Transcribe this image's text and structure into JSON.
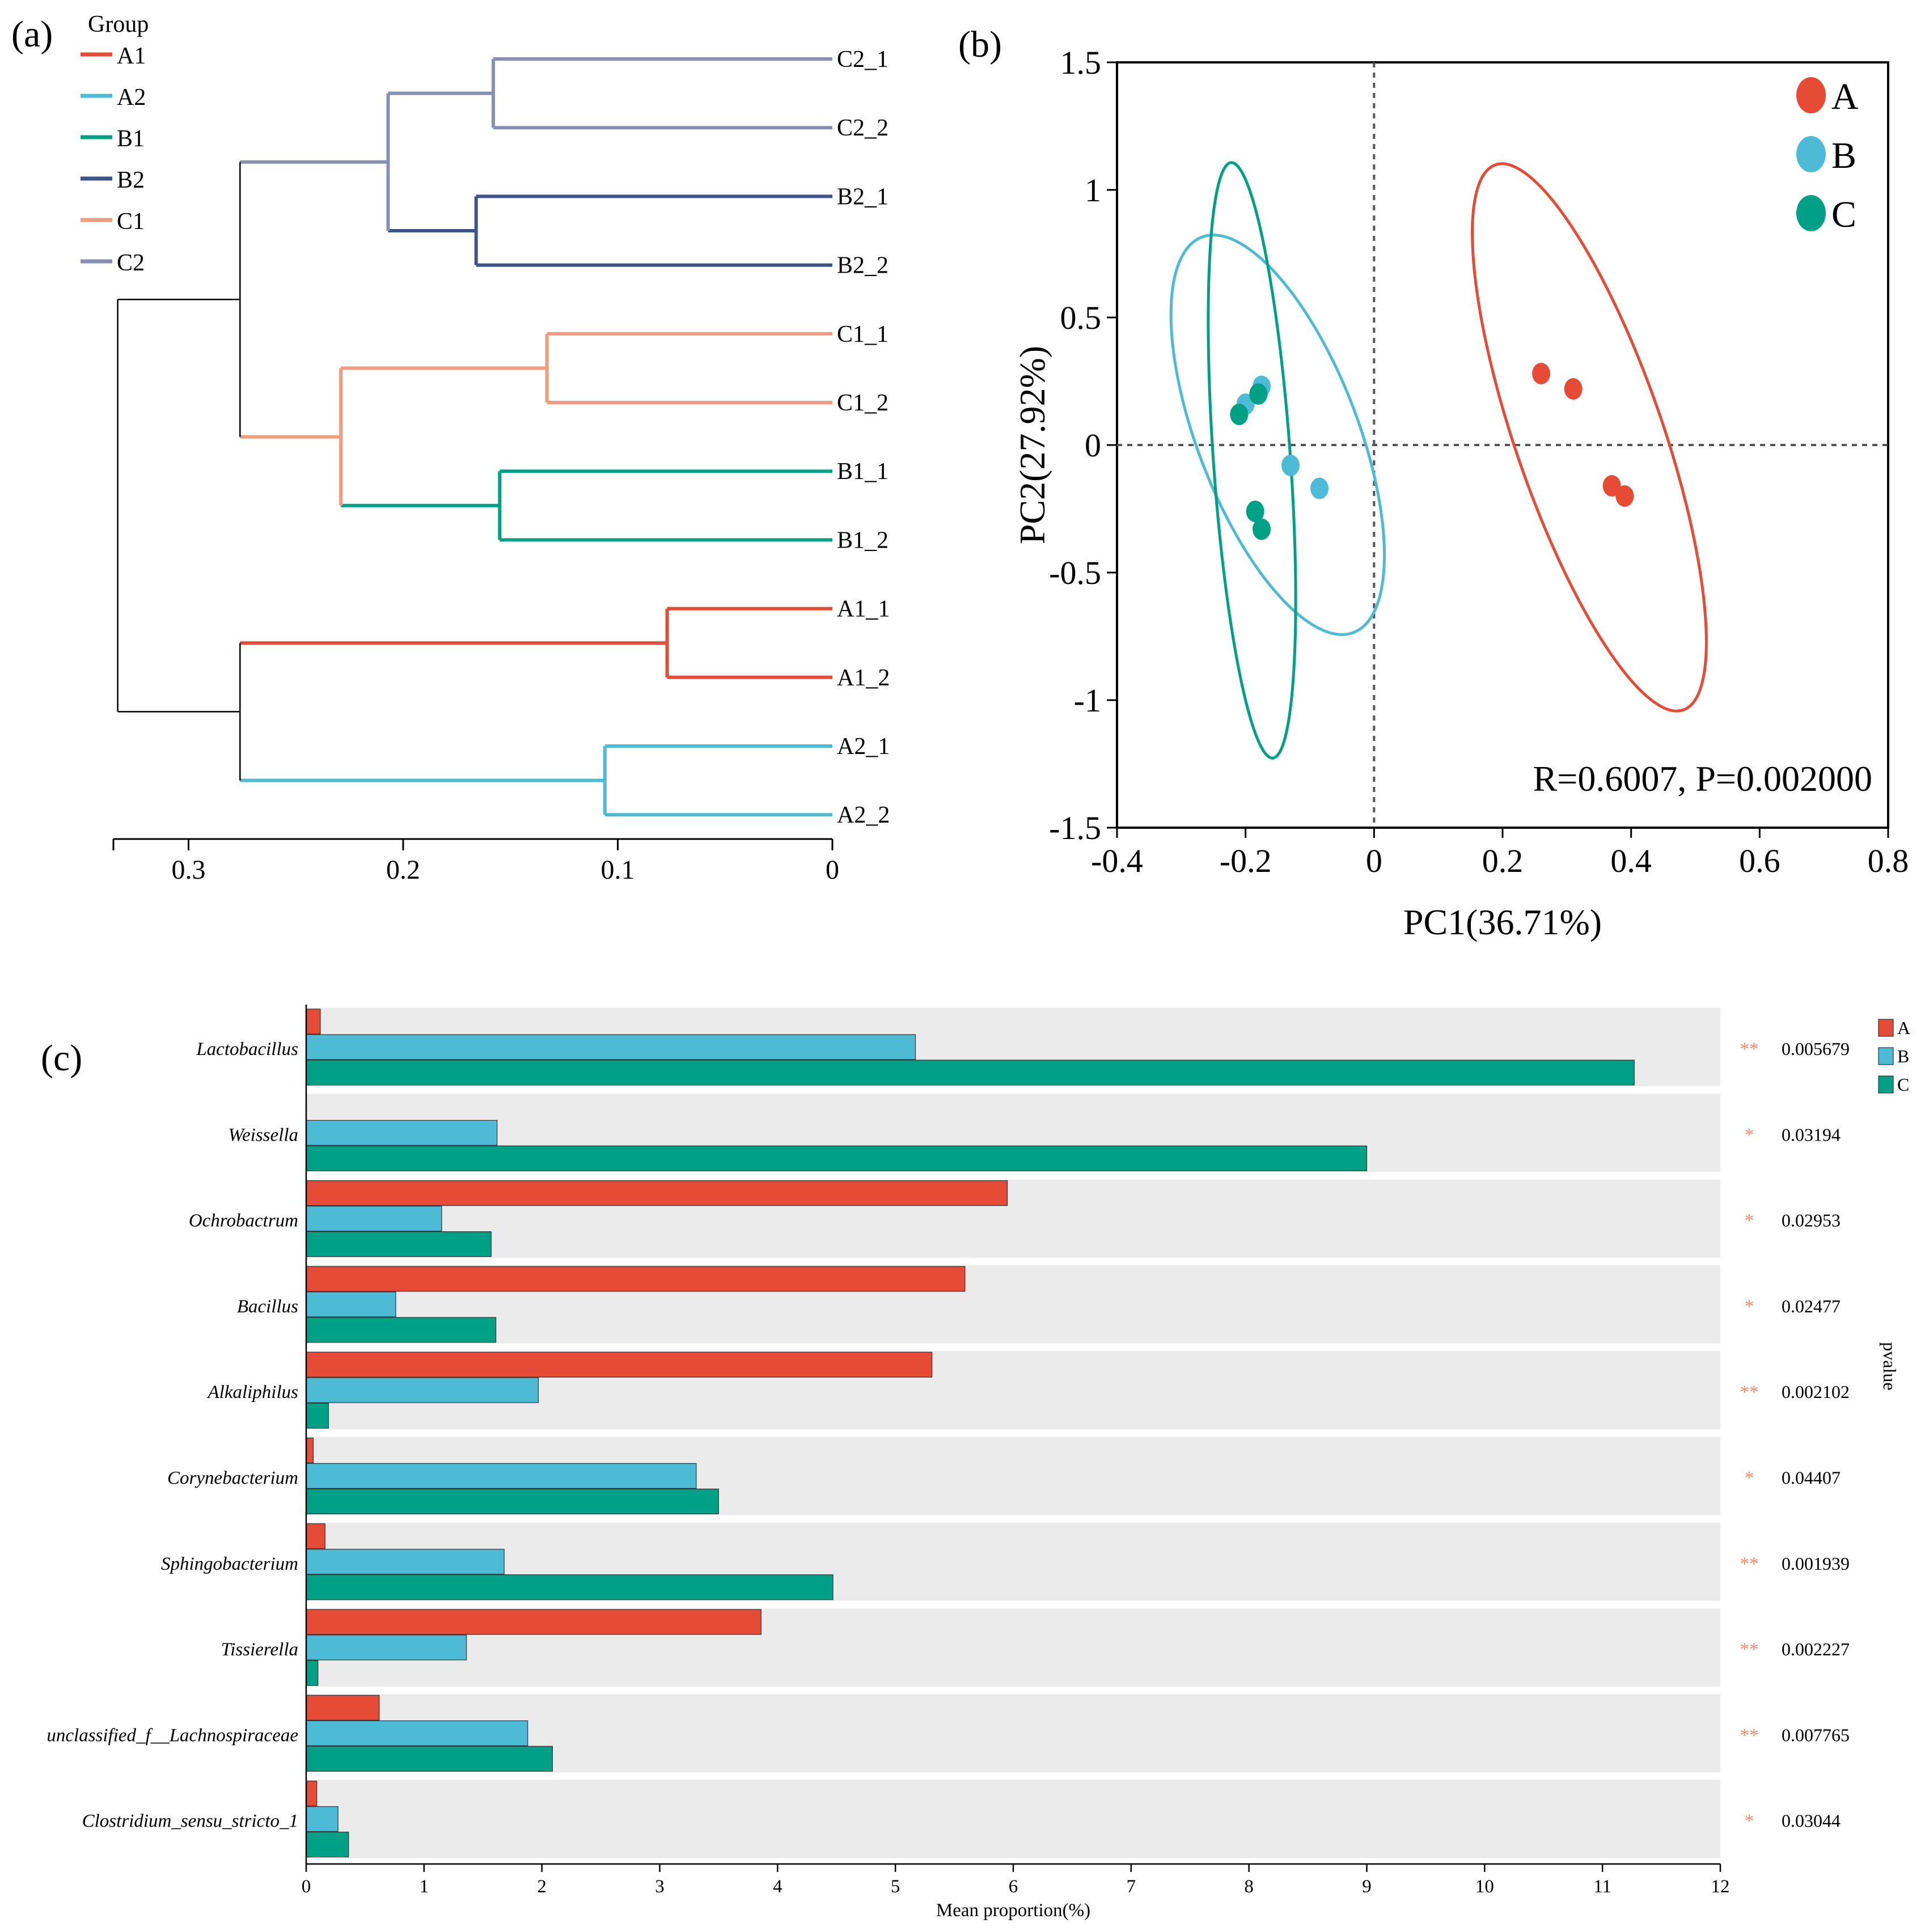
{
  "panel_labels": [
    "(a)",
    "(b)",
    "(c)"
  ],
  "colors": {
    "A1": "#e64b35",
    "A2": "#4dbbd5",
    "B1": "#00a087",
    "B2": "#3c5488",
    "C1": "#f39b7f",
    "C2": "#8491b4",
    "A": "#e64b35",
    "B": "#4dbbd5",
    "C": "#00a087",
    "panel_bg": "#ebebeb",
    "star": "#f08a6a",
    "black_branch": "#000000"
  },
  "chart_data": [
    {
      "type": "dendrogram",
      "legend_title": "Group",
      "legend": [
        "A1",
        "A2",
        "B1",
        "B2",
        "C1",
        "C2"
      ],
      "leaves": [
        "C2_1",
        "C2_2",
        "B2_1",
        "B2_2",
        "C1_1",
        "C1_2",
        "B1_1",
        "B1_2",
        "A1_1",
        "A1_2",
        "A2_1",
        "A2_2"
      ],
      "leaf_groups": [
        "C2",
        "C2",
        "B2",
        "B2",
        "C1",
        "C1",
        "B1",
        "B1",
        "A1",
        "A1",
        "A2",
        "A2"
      ],
      "merges": [
        {
          "id": "m1",
          "left": "C2_1",
          "right": "C2_2",
          "height": 0.158,
          "group": "C2"
        },
        {
          "id": "m2",
          "left": "B2_1",
          "right": "B2_2",
          "height": 0.166,
          "group": "B2"
        },
        {
          "id": "m3",
          "left": "C1_1",
          "right": "C1_2",
          "height": 0.133,
          "group": "C1"
        },
        {
          "id": "m4",
          "left": "B1_1",
          "right": "B1_2",
          "height": 0.155,
          "group": "B1"
        },
        {
          "id": "m5",
          "left": "A1_1",
          "right": "A1_2",
          "height": 0.077,
          "group": "A1"
        },
        {
          "id": "m6",
          "left": "A2_1",
          "right": "A2_2",
          "height": 0.106,
          "group": "A2"
        },
        {
          "id": "m7",
          "left": "m1",
          "right": "m2",
          "height": 0.207,
          "group": "C2"
        },
        {
          "id": "m8",
          "left": "m3",
          "right": "m4",
          "height": 0.229,
          "group": "C1"
        },
        {
          "id": "m9",
          "left": "m5",
          "right": "m6",
          "height": 0.276,
          "group": null
        },
        {
          "id": "m10",
          "left": "m7",
          "right": "m8",
          "height": 0.276,
          "group": null
        },
        {
          "id": "m11",
          "left": "m10",
          "right": "m9",
          "height": 0.333,
          "group": null
        }
      ],
      "xaxis": {
        "ticks": [
          0.3,
          0.2,
          0.1,
          0
        ],
        "tick_labels": [
          "0.3",
          "0.2",
          "0.1",
          "0"
        ],
        "range": [
          0.335,
          0
        ]
      }
    },
    {
      "type": "scatter",
      "xlabel": "PC1(36.71%)",
      "ylabel": "PC2(27.92%)",
      "xlim": [
        -0.4,
        0.8
      ],
      "ylim": [
        -1.5,
        1.5
      ],
      "xticks": [
        -0.4,
        -0.2,
        0,
        0.2,
        0.4,
        0.6,
        0.8
      ],
      "xtick_labels": [
        "-0.4",
        "-0.2",
        "0",
        "0.2",
        "0.4",
        "0.6",
        "0.8"
      ],
      "yticks": [
        -1.5,
        -1,
        -0.5,
        0,
        0.5,
        1,
        1.5
      ],
      "ytick_labels": [
        "-1.5",
        "-1",
        "-0.5",
        "0",
        "0.5",
        "1",
        "1.5"
      ],
      "legend": [
        "A",
        "B",
        "C"
      ],
      "annotation": "R=0.6007, P=0.002000",
      "series": [
        {
          "name": "A",
          "points": [
            [
              0.26,
              0.28
            ],
            [
              0.31,
              0.22
            ],
            [
              0.37,
              -0.16
            ],
            [
              0.39,
              -0.2
            ]
          ],
          "ellipse": {
            "cx": 0.335,
            "cy": 0.03,
            "rx": 0.115,
            "ry": 1.13,
            "angle": 19
          }
        },
        {
          "name": "B",
          "points": [
            [
              -0.2,
              0.16
            ],
            [
              -0.175,
              0.23
            ],
            [
              -0.13,
              -0.08
            ],
            [
              -0.085,
              -0.17
            ]
          ],
          "ellipse": {
            "cx": -0.15,
            "cy": 0.04,
            "rx": 0.125,
            "ry": 0.83,
            "angle": 21
          }
        },
        {
          "name": "C",
          "points": [
            [
              -0.21,
              0.12
            ],
            [
              -0.18,
              0.2
            ],
            [
              -0.185,
              -0.26
            ],
            [
              -0.175,
              -0.33
            ]
          ],
          "ellipse": {
            "cx": -0.19,
            "cy": -0.06,
            "rx": 0.06,
            "ry": 1.17,
            "angle": 4
          }
        }
      ]
    },
    {
      "type": "bar",
      "orientation": "horizontal",
      "xlabel": "Mean proportion(%)",
      "xlim": [
        0,
        12
      ],
      "xticks": [
        0,
        1,
        2,
        3,
        4,
        5,
        6,
        7,
        8,
        9,
        10,
        11,
        12
      ],
      "xtick_labels": [
        "0",
        "1",
        "2",
        "3",
        "4",
        "5",
        "6",
        "7",
        "8",
        "9",
        "10",
        "11",
        "12"
      ],
      "right_axis_label": "pvalue",
      "categories": [
        "Lactobacillus",
        "Weissella",
        "Ochrobactrum",
        "Bacillus",
        "Alkaliphilus",
        "Corynebacterium",
        "Sphingobacterium",
        "Tissierella",
        "unclassified_f__Lachnospiraceae",
        "Clostridium_sensu_stricto_1"
      ],
      "series": [
        {
          "name": "A",
          "values": [
            0.12,
            0.0,
            5.95,
            5.59,
            5.31,
            0.06,
            0.16,
            3.86,
            0.62,
            0.09
          ]
        },
        {
          "name": "B",
          "values": [
            5.17,
            1.62,
            1.15,
            0.76,
            1.97,
            3.31,
            1.68,
            1.36,
            1.88,
            0.27
          ]
        },
        {
          "name": "C",
          "values": [
            11.27,
            9.0,
            1.57,
            1.61,
            0.19,
            3.5,
            4.47,
            0.1,
            2.09,
            0.36
          ]
        }
      ],
      "significance": [
        "**",
        "*",
        "*",
        "*",
        "**",
        "*",
        "**",
        "**",
        "**",
        "*"
      ],
      "pvalues": [
        "0.005679",
        "0.03194",
        "0.02953",
        "0.02477",
        "0.002102",
        "0.04407",
        "0.001939",
        "0.002227",
        "0.007765",
        "0.03044"
      ],
      "legend": [
        "A",
        "B",
        "C"
      ]
    }
  ]
}
